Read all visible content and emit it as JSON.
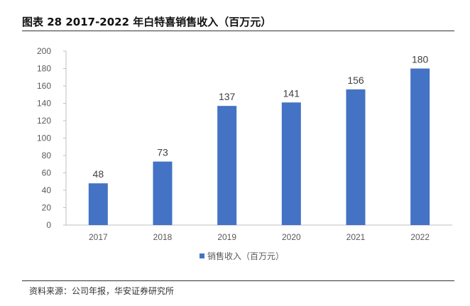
{
  "title": "图表 28 2017-2022 年白特喜销售收入（百万元）",
  "source": "资料来源：公司年报，华安证券研究所",
  "chart_data": {
    "type": "bar",
    "categories": [
      "2017",
      "2018",
      "2019",
      "2020",
      "2021",
      "2022"
    ],
    "series": [
      {
        "name": "销售收入（百万元）",
        "values": [
          48,
          73,
          137,
          141,
          156,
          180
        ],
        "color": "#4472C4"
      }
    ],
    "ylim": [
      0,
      200
    ],
    "yticks": [
      0,
      20,
      40,
      60,
      80,
      100,
      120,
      140,
      160,
      180,
      200
    ],
    "grid": false,
    "legend": "bottom",
    "data_labels": true
  }
}
